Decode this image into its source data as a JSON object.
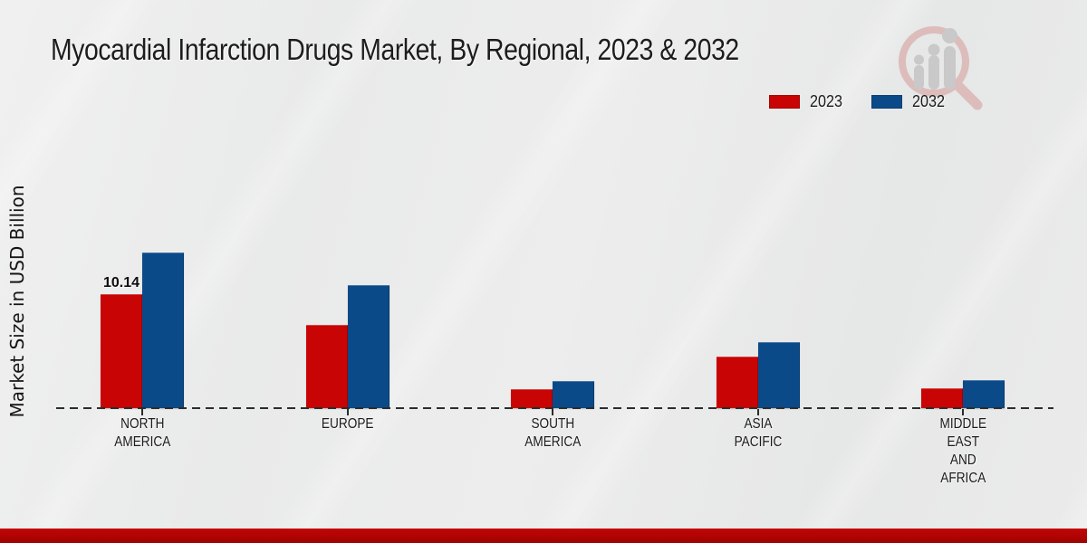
{
  "title": "Myocardial Infarction Drugs Market, By Regional, 2023 & 2032",
  "y_axis_label": "Market Size in USD Billion",
  "legend": {
    "items": [
      {
        "label": "2023",
        "color": "#c80404"
      },
      {
        "label": "2032",
        "color": "#0b4a88"
      }
    ]
  },
  "watermark_logo": "magnifier-growth-chart-logo",
  "theme": {
    "accent_red_top": "#c30505",
    "accent_red_bottom": "#9e0202",
    "text_color": "#1b1b1b"
  },
  "chart_data": {
    "type": "bar",
    "title": "Myocardial Infarction Drugs Market, By Regional, 2023 & 2032",
    "xlabel": "",
    "ylabel": "Market Size in USD Billion",
    "unit": "USD Billion",
    "categories": [
      "NORTH AMERICA",
      "EUROPE",
      "SOUTH AMERICA",
      "ASIA PACIFIC",
      "MIDDLE EAST AND AFRICA"
    ],
    "series": [
      {
        "name": "2023",
        "color": "#c80404",
        "values": [
          10.14,
          7.4,
          1.7,
          4.6,
          1.8
        ]
      },
      {
        "name": "2032",
        "color": "#0b4a88",
        "values": [
          13.8,
          10.9,
          2.4,
          5.9,
          2.5
        ]
      }
    ],
    "data_labels": [
      {
        "series_index": 0,
        "category_index": 0,
        "text": "10.14"
      }
    ],
    "ylim": [
      0,
      15
    ],
    "grid": false,
    "legend_position": "top-right",
    "baseline_style": "dashed"
  }
}
